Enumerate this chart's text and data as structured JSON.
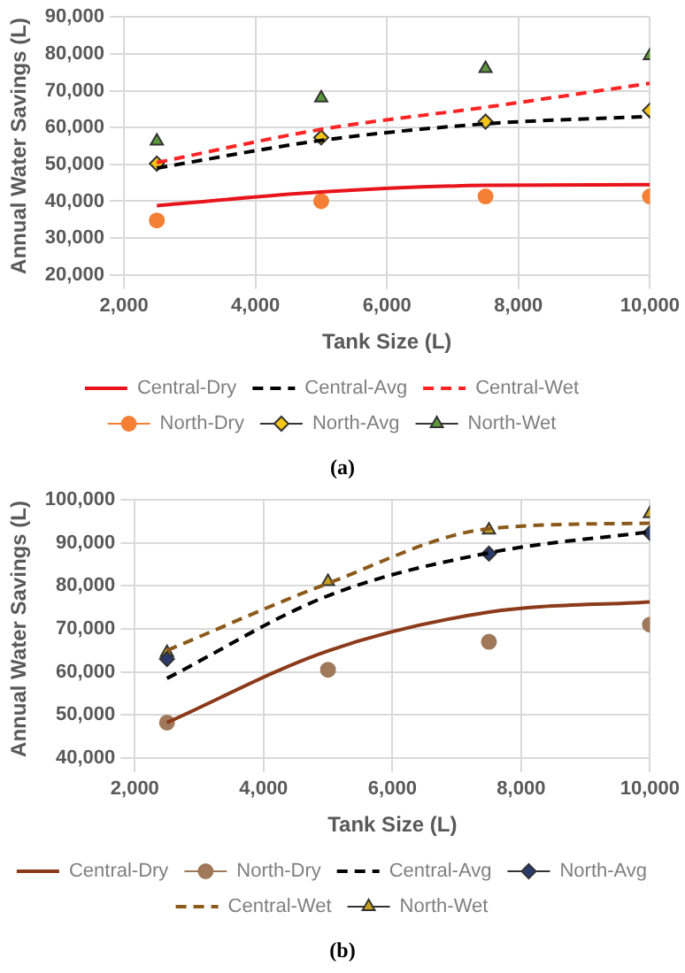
{
  "chart_data": [
    {
      "type": "line",
      "xlabel": "Tank Size (L)",
      "ylabel": "Annual Water Savings (L)",
      "x": [
        2500,
        5000,
        7500,
        10000
      ],
      "xlim": [
        2000,
        10000
      ],
      "xticks": [
        {
          "value": 2000,
          "label": "2,000"
        },
        {
          "value": 4000,
          "label": "4,000"
        },
        {
          "value": 6000,
          "label": "6,000"
        },
        {
          "value": 8000,
          "label": "8,000"
        },
        {
          "value": 10000,
          "label": "10,000"
        }
      ],
      "ylim": [
        20000,
        90000
      ],
      "yticks": [
        {
          "value": 20000,
          "label": "20,000"
        },
        {
          "value": 30000,
          "label": "30,000"
        },
        {
          "value": 40000,
          "label": "40,000"
        },
        {
          "value": 50000,
          "label": "50,000"
        },
        {
          "value": 60000,
          "label": "60,000"
        },
        {
          "value": 70000,
          "label": "70,000"
        },
        {
          "value": 80000,
          "label": "80,000"
        },
        {
          "value": 90000,
          "label": "90,000"
        }
      ],
      "grid": true,
      "legend": "bottom",
      "annotations": [
        "(a)"
      ],
      "series": [
        {
          "name": "Central-Dry",
          "type": "line",
          "color": "#e8141c",
          "line_style": "solid",
          "marker": "none",
          "values": [
            38800,
            42500,
            44300,
            44500
          ]
        },
        {
          "name": "Central-Avg",
          "type": "line",
          "color": "#000000",
          "line_style": "dashed",
          "marker": "none",
          "values": [
            49000,
            56500,
            61000,
            63000
          ]
        },
        {
          "name": "Central-Wet",
          "type": "line",
          "color": "#ff2424",
          "line_style": "dashed",
          "marker": "none",
          "values": [
            50500,
            59500,
            65500,
            72000
          ]
        },
        {
          "name": "North-Dry",
          "type": "scatter",
          "color": "#f47f35",
          "marker": "circle",
          "values": [
            34800,
            40000,
            41300,
            41300
          ]
        },
        {
          "name": "North-Avg",
          "type": "scatter",
          "color": "#f5c518",
          "marker": "diamond",
          "values": [
            50200,
            57300,
            61600,
            64600
          ]
        },
        {
          "name": "North-Wet",
          "type": "scatter",
          "color": "#5a9a3a",
          "marker": "triangle",
          "values": [
            56300,
            68000,
            76000,
            79500
          ]
        }
      ]
    },
    {
      "type": "line",
      "xlabel": "Tank Size (L)",
      "ylabel": "Annual Water Savings (L)",
      "x": [
        2500,
        5000,
        7500,
        10000
      ],
      "xlim": [
        2000,
        10000
      ],
      "xticks": [
        {
          "value": 2000,
          "label": "2,000"
        },
        {
          "value": 4000,
          "label": "4,000"
        },
        {
          "value": 6000,
          "label": "6,000"
        },
        {
          "value": 8000,
          "label": "8,000"
        },
        {
          "value": 10000,
          "label": "10,000"
        }
      ],
      "ylim": [
        40000,
        100000
      ],
      "yticks": [
        {
          "value": 40000,
          "label": "40,000"
        },
        {
          "value": 50000,
          "label": "50,000"
        },
        {
          "value": 60000,
          "label": "60,000"
        },
        {
          "value": 70000,
          "label": "70,000"
        },
        {
          "value": 80000,
          "label": "80,000"
        },
        {
          "value": 90000,
          "label": "90,000"
        },
        {
          "value": 100000,
          "label": "100,000"
        }
      ],
      "grid": true,
      "legend": "bottom",
      "annotations": [
        "(b)"
      ],
      "series": [
        {
          "name": "Central-Dry",
          "type": "line",
          "color": "#8b3a1a",
          "line_style": "solid",
          "marker": "none",
          "values": [
            48200,
            64900,
            73900,
            76300
          ]
        },
        {
          "name": "North-Dry",
          "type": "scatter",
          "color": "#a0785a",
          "marker": "circle",
          "values": [
            48200,
            60500,
            67000,
            71000
          ]
        },
        {
          "name": "Central-Avg",
          "type": "line",
          "color": "#000000",
          "line_style": "dashed",
          "marker": "none",
          "values": [
            58500,
            77700,
            87700,
            92600
          ]
        },
        {
          "name": "North-Avg",
          "type": "scatter",
          "color": "#2a3a6a",
          "marker": "diamond",
          "values": [
            63000,
            null,
            87500,
            92300
          ]
        },
        {
          "name": "Central-Wet",
          "type": "line",
          "color": "#8b5a1a",
          "line_style": "dashed",
          "marker": "none",
          "values": [
            65000,
            80600,
            93300,
            94600
          ]
        },
        {
          "name": "North-Wet",
          "type": "scatter",
          "color": "#c8a020",
          "marker": "triangle",
          "values": [
            64500,
            81000,
            93000,
            96800
          ]
        }
      ]
    }
  ]
}
